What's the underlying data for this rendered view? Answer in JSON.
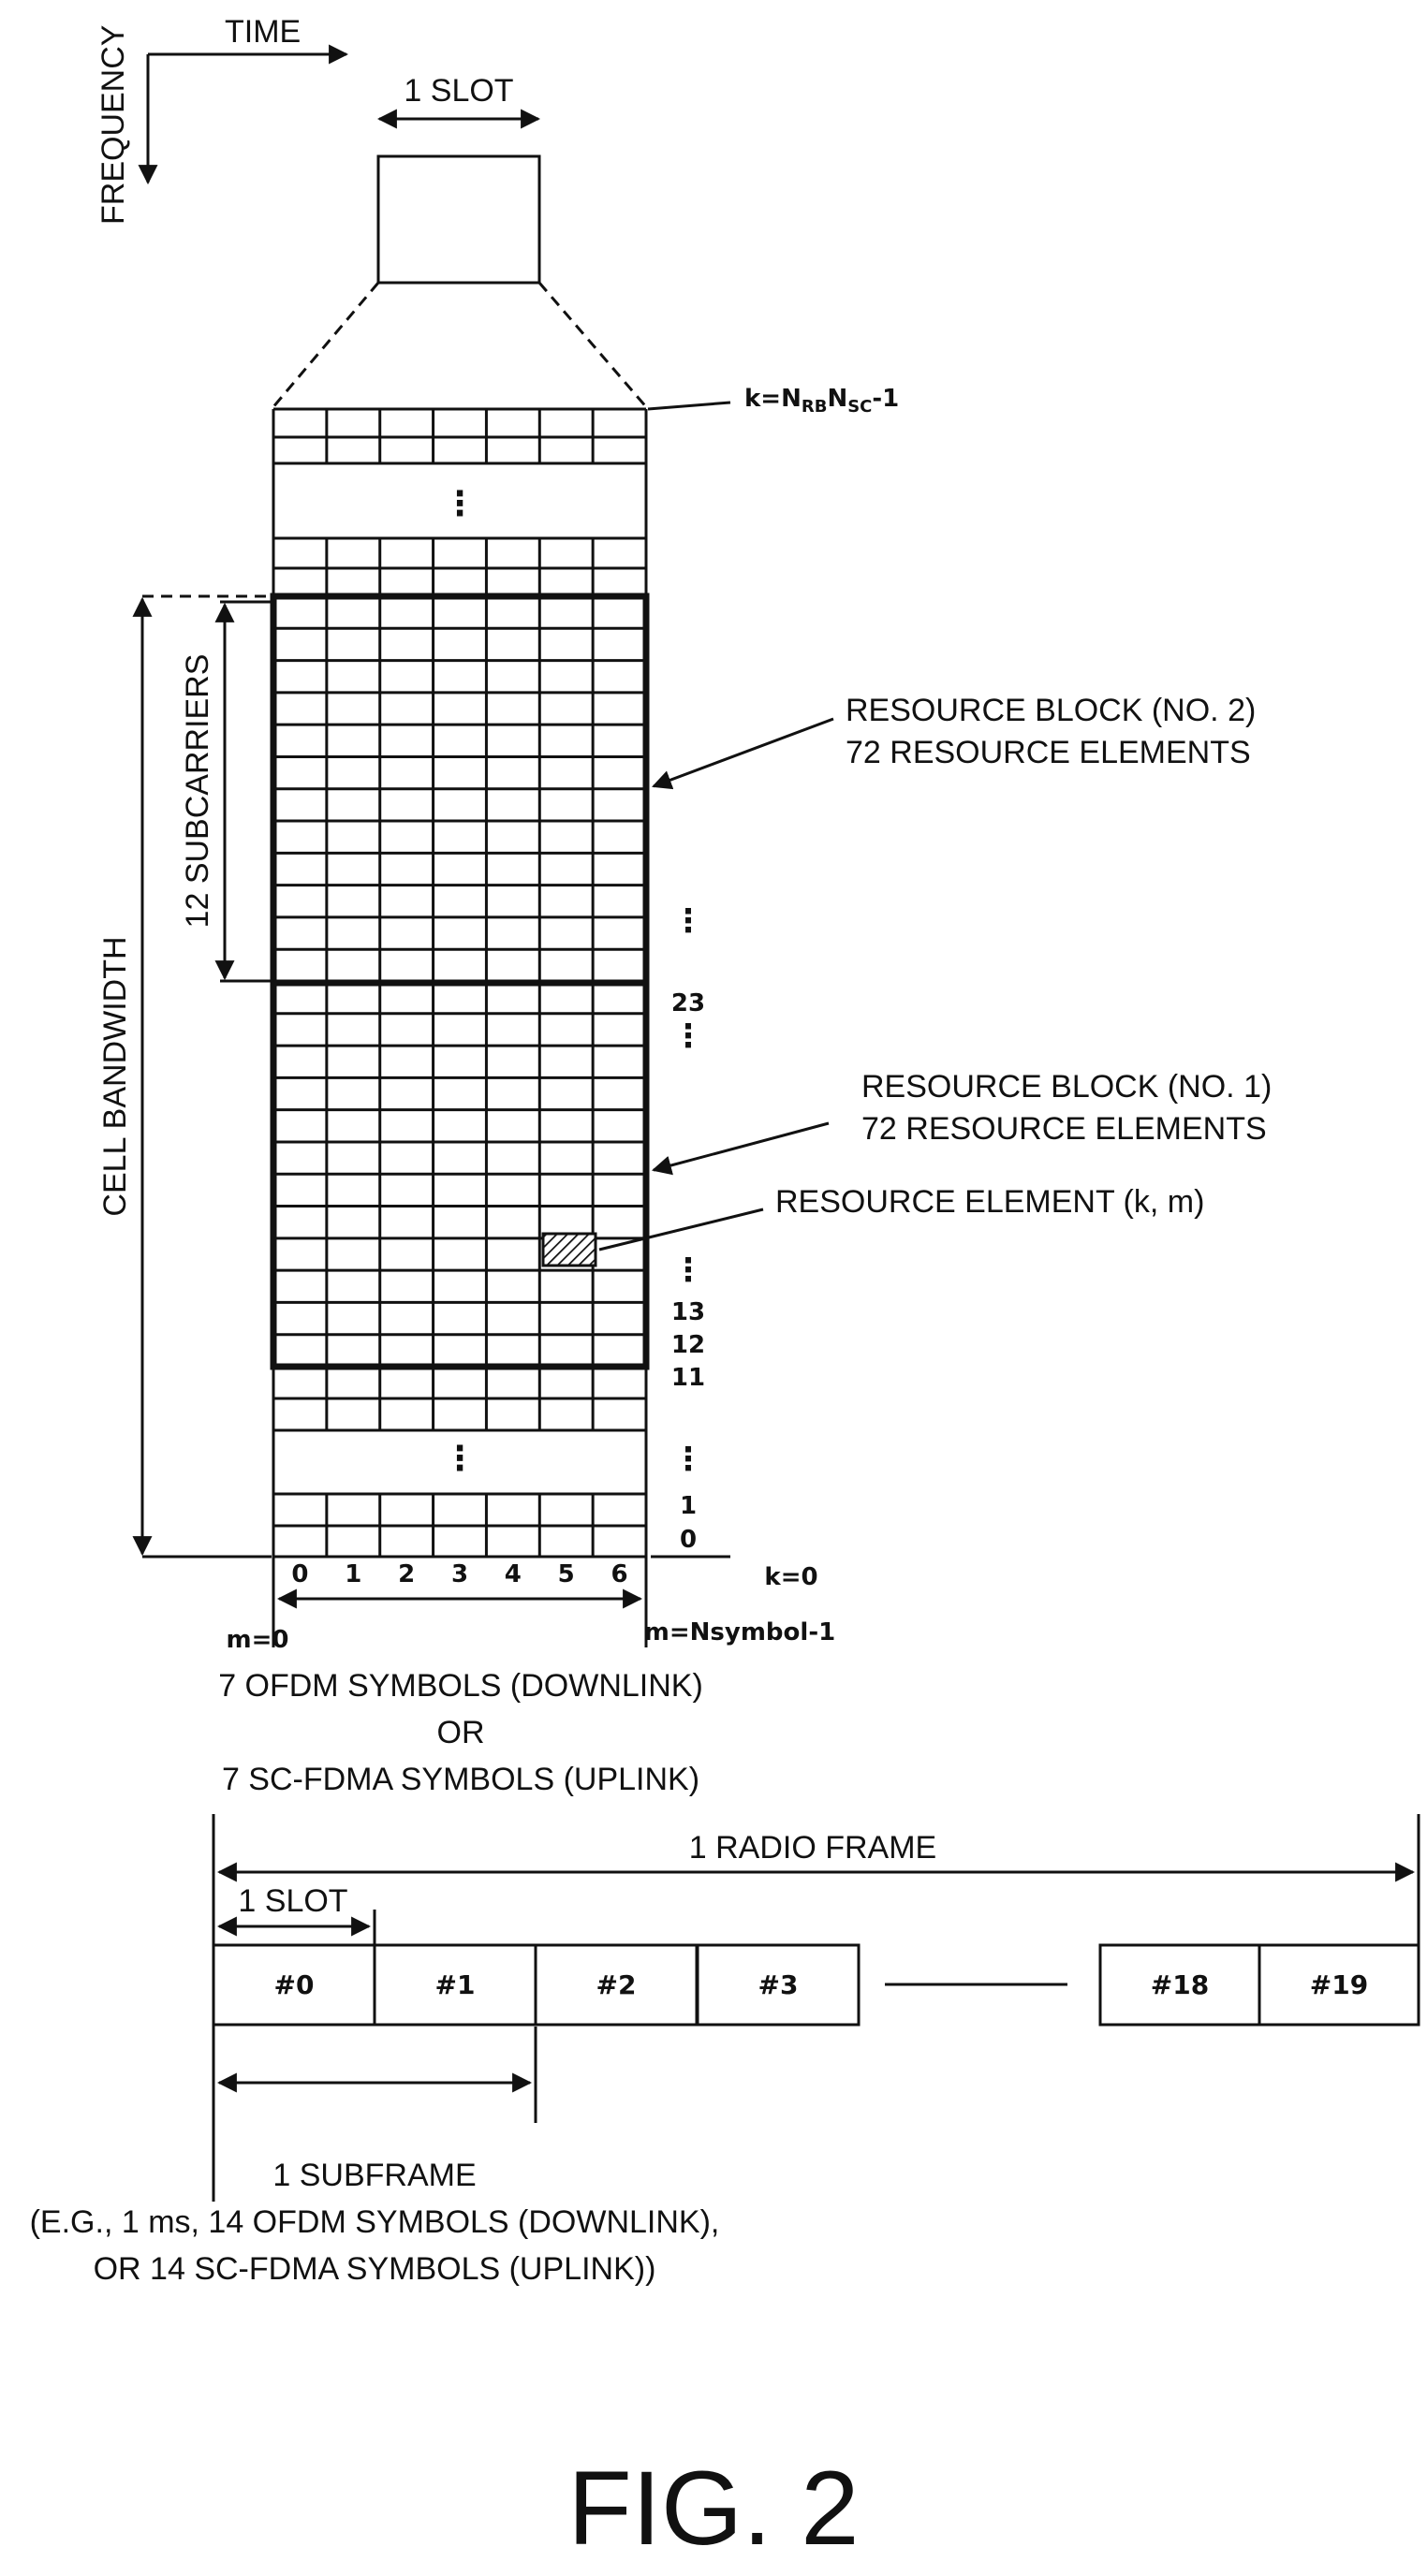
{
  "axes": {
    "time_label": "TIME",
    "frequency_label": "FREQUENCY"
  },
  "slot_label_top": "1 SLOT",
  "k_top_label": "k=N",
  "k_top_sub1": "RB",
  "k_top_mid": "N",
  "k_top_sub2": "SC",
  "k_top_suffix": "-1",
  "vertical_dots": "⋮",
  "cell_bandwidth_label": "CELL BANDWIDTH",
  "subcarriers_label": "12 SUBCARRIERS",
  "rb2": {
    "line1": "RESOURCE BLOCK (NO. 2)",
    "line2": "72 RESOURCE ELEMENTS"
  },
  "rb1": {
    "line1": "RESOURCE BLOCK (NO. 1)",
    "line2": "72 RESOURCE ELEMENTS"
  },
  "resource_element_label": "RESOURCE ELEMENT (k, m)",
  "k_index_labels": [
    "23",
    "13",
    "12",
    "11",
    "1",
    "0"
  ],
  "k_zero_label": "k=0",
  "symbol_indices": [
    "0",
    "1",
    "2",
    "3",
    "4",
    "5",
    "6"
  ],
  "m_start_label": "m=0",
  "m_end_label": "m=Nsymbol-1",
  "symbols_caption": {
    "line1": "7 OFDM SYMBOLS (DOWNLINK)",
    "line2": "OR",
    "line3": "7 SC-FDMA SYMBOLS (UPLINK)"
  },
  "radio_frame_label": "1 RADIO FRAME",
  "slot_label_bottom": "1 SLOT",
  "frame_slots": [
    "#0",
    "#1",
    "#2",
    "#3",
    "#18",
    "#19"
  ],
  "subframe_caption": {
    "line1": "1 SUBFRAME",
    "line2": "(E.G., 1 ms, 14 OFDM SYMBOLS (DOWNLINK),",
    "line3": "OR 14 SC-FDMA SYMBOLS (UPLINK))"
  },
  "figure_label": "FIG. 2"
}
